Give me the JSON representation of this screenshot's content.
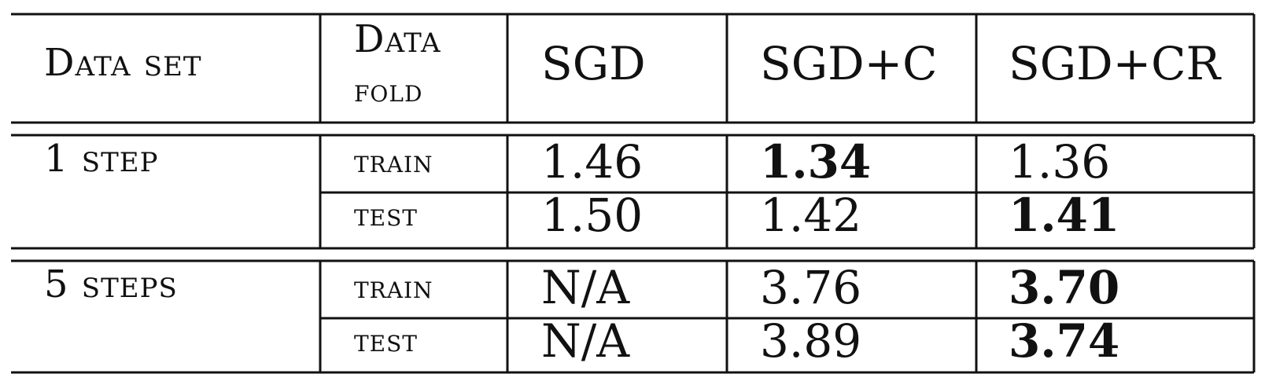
{
  "table": {
    "headers": {
      "dataset": "Data set",
      "fold_line1": "Data",
      "fold_line2": "fold",
      "col1": "SGD",
      "col2": "SGD+C",
      "col3": "SGD+CR"
    },
    "groups": [
      {
        "dataset": "1 step",
        "rows": [
          {
            "fold": "train",
            "values": [
              "1.46",
              "1.34",
              "1.36"
            ],
            "bold_index": 1
          },
          {
            "fold": "test",
            "values": [
              "1.50",
              "1.42",
              "1.41"
            ],
            "bold_index": 2
          }
        ]
      },
      {
        "dataset": "5 steps",
        "rows": [
          {
            "fold": "train",
            "values": [
              "N/A",
              "3.76",
              "3.70"
            ],
            "bold_index": 2
          },
          {
            "fold": "test",
            "values": [
              "N/A",
              "3.89",
              "3.74"
            ],
            "bold_index": 2
          }
        ]
      }
    ]
  }
}
